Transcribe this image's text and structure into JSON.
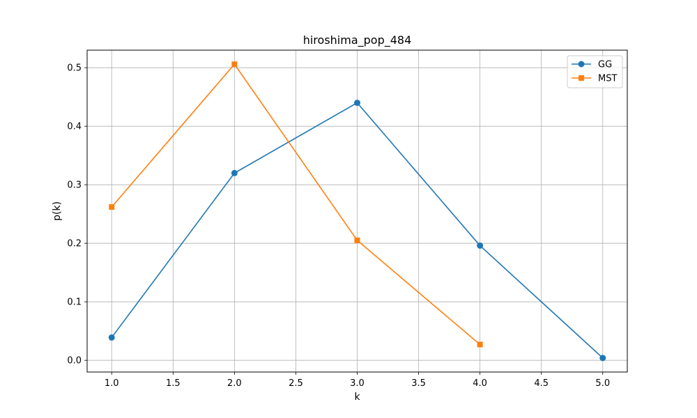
{
  "chart_data": {
    "type": "line",
    "title": "hiroshima_pop_484",
    "xlabel": "k",
    "ylabel": "p(k)",
    "xlim": [
      0.8,
      5.2
    ],
    "ylim": [
      -0.02,
      0.53
    ],
    "xticks": [
      1.0,
      1.5,
      2.0,
      2.5,
      3.0,
      3.5,
      4.0,
      4.5,
      5.0
    ],
    "xtick_labels": [
      "1.0",
      "1.5",
      "2.0",
      "2.5",
      "3.0",
      "3.5",
      "4.0",
      "4.5",
      "5.0"
    ],
    "yticks": [
      0.0,
      0.1,
      0.2,
      0.3,
      0.4,
      0.5
    ],
    "ytick_labels": [
      "0.0",
      "0.1",
      "0.2",
      "0.3",
      "0.4",
      "0.5"
    ],
    "grid": true,
    "legend_position": "top-right",
    "series": [
      {
        "name": "GG",
        "color": "#1f77b4",
        "marker": "circle",
        "x": [
          1,
          2,
          3,
          4,
          5
        ],
        "y": [
          0.039,
          0.32,
          0.44,
          0.196,
          0.004
        ]
      },
      {
        "name": "MST",
        "color": "#ff7f0e",
        "marker": "square",
        "x": [
          1,
          2,
          3,
          4
        ],
        "y": [
          0.262,
          0.506,
          0.205,
          0.027
        ]
      }
    ]
  }
}
